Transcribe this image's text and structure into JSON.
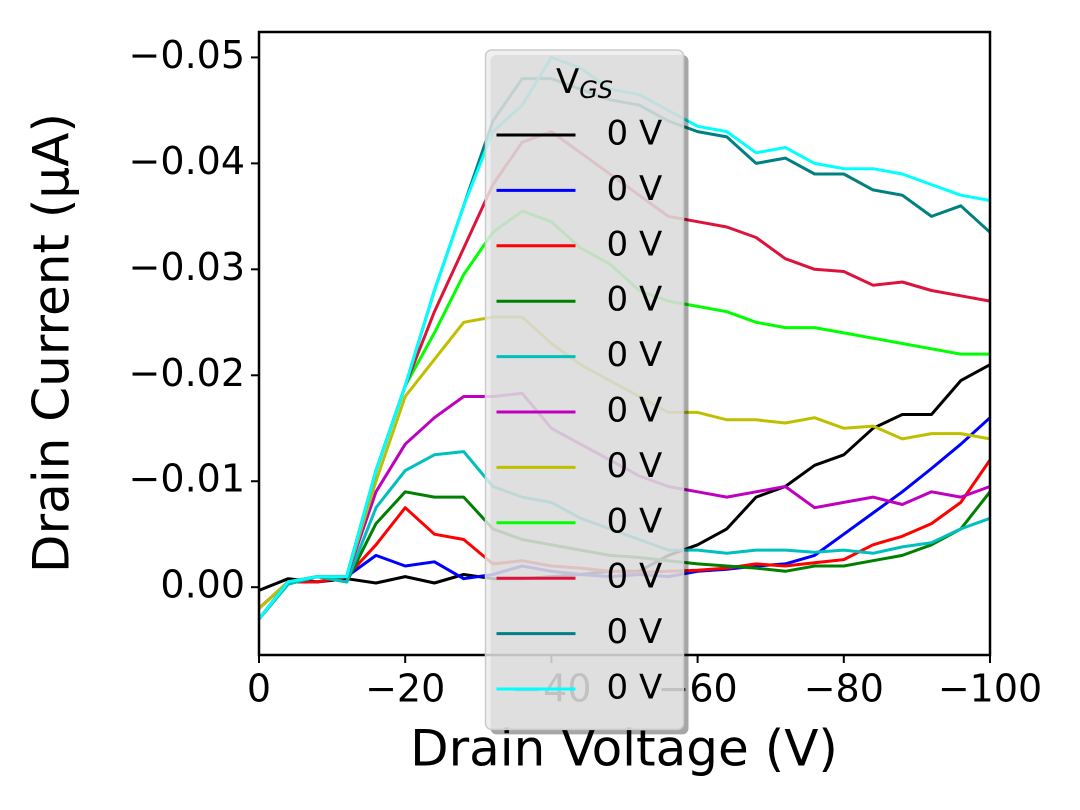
{
  "chart_data": {
    "type": "line",
    "x_label": "Drain Voltage (V)",
    "y_label": "Drain Current (μA)",
    "legend_title": "V",
    "legend_title_sub": "GS",
    "legend_loc": "upper center",
    "xlim": [
      0,
      -100
    ],
    "ylim": [
      0.0064,
      -0.0524
    ],
    "xticks": [
      0,
      {
        "value": -20,
        "label": "−20"
      },
      {
        "value": -40,
        "label": "−40"
      },
      {
        "value": -60,
        "label": "−60"
      },
      {
        "value": -80,
        "label": "−80"
      },
      {
        "value": -100,
        "label": "−100"
      }
    ],
    "yticks": [
      {
        "value": 0,
        "label": "0.00"
      },
      {
        "value": -0.01,
        "label": "−0.01"
      },
      {
        "value": -0.02,
        "label": "−0.02"
      },
      {
        "value": -0.03,
        "label": "−0.03"
      },
      {
        "value": -0.04,
        "label": "−0.04"
      },
      {
        "value": -0.05,
        "label": "−0.05"
      }
    ],
    "x": [
      0,
      -4,
      -8,
      -12,
      -16,
      -20,
      -24,
      -28,
      -32,
      -36,
      -40,
      -44,
      -48,
      -52,
      -56,
      -60,
      -64,
      -68,
      -72,
      -76,
      -80,
      -84,
      -88,
      -92,
      -96,
      -100
    ],
    "series": [
      {
        "name": "0 V",
        "color": "#000000",
        "values": [
          0.0003,
          -0.0008,
          -0.0005,
          -0.0008,
          -0.0004,
          -0.001,
          -0.0004,
          -0.0012,
          -0.0008,
          -0.0008,
          -0.001,
          -0.0012,
          -0.0015,
          -0.0015,
          -0.003,
          -0.004,
          -0.0055,
          -0.0085,
          -0.0095,
          -0.0115,
          -0.0125,
          -0.015,
          -0.0163,
          -0.0163,
          -0.0195,
          -0.021
        ]
      },
      {
        "name": "0 V",
        "color": "#0000ff",
        "values": [
          0.002,
          -0.0005,
          -0.0005,
          -0.001,
          -0.003,
          -0.002,
          -0.0024,
          -0.0008,
          -0.0012,
          -0.002,
          -0.0015,
          -0.0012,
          -0.001,
          -0.0012,
          -0.001,
          -0.0015,
          -0.0017,
          -0.002,
          -0.0022,
          -0.003,
          -0.005,
          -0.007,
          -0.009,
          -0.0112,
          -0.0135,
          -0.016
        ]
      },
      {
        "name": "0 V",
        "color": "#ff0000",
        "values": [
          0.003,
          -0.0005,
          -0.0005,
          -0.001,
          -0.004,
          -0.0075,
          -0.005,
          -0.0045,
          -0.0022,
          -0.0025,
          -0.002,
          -0.0018,
          -0.0015,
          -0.0014,
          -0.0015,
          -0.0016,
          -0.0018,
          -0.0022,
          -0.002,
          -0.0023,
          -0.0026,
          -0.004,
          -0.0048,
          -0.006,
          -0.008,
          -0.012
        ]
      },
      {
        "name": "0 V",
        "color": "#008000",
        "values": [
          0.003,
          -0.0003,
          -0.001,
          -0.0005,
          -0.006,
          -0.009,
          -0.0085,
          -0.0085,
          -0.0055,
          -0.0045,
          -0.004,
          -0.0035,
          -0.003,
          -0.0028,
          -0.0025,
          -0.0022,
          -0.002,
          -0.0018,
          -0.0015,
          -0.002,
          -0.002,
          -0.0025,
          -0.003,
          -0.004,
          -0.0055,
          -0.009
        ]
      },
      {
        "name": "0 V",
        "color": "#00bfbf",
        "values": [
          0.003,
          -0.0003,
          -0.001,
          -0.0005,
          -0.0075,
          -0.011,
          -0.0125,
          -0.0128,
          -0.0095,
          -0.0085,
          -0.008,
          -0.0065,
          -0.0055,
          -0.0045,
          -0.0035,
          -0.0035,
          -0.0032,
          -0.0035,
          -0.0035,
          -0.0033,
          -0.0035,
          -0.0032,
          -0.0038,
          -0.0042,
          -0.0055,
          -0.0065
        ]
      },
      {
        "name": "0 V",
        "color": "#bf00bf",
        "values": [
          0.003,
          -0.0005,
          -0.001,
          -0.001,
          -0.009,
          -0.0135,
          -0.016,
          -0.018,
          -0.018,
          -0.0183,
          -0.015,
          -0.0135,
          -0.012,
          -0.0105,
          -0.0095,
          -0.009,
          -0.0085,
          -0.009,
          -0.0095,
          -0.0075,
          -0.008,
          -0.0085,
          -0.0078,
          -0.009,
          -0.0085,
          -0.0095
        ]
      },
      {
        "name": "0 V",
        "color": "#bfbf00",
        "values": [
          0.002,
          -0.0005,
          -0.001,
          -0.001,
          -0.01,
          -0.018,
          -0.0215,
          -0.025,
          -0.0255,
          -0.0255,
          -0.023,
          -0.021,
          -0.0195,
          -0.018,
          -0.0165,
          -0.0165,
          -0.0158,
          -0.0158,
          -0.0155,
          -0.016,
          -0.015,
          -0.0152,
          -0.014,
          -0.0145,
          -0.0145,
          -0.014
        ]
      },
      {
        "name": "0 V",
        "color": "#00ff00",
        "values": [
          0.003,
          -0.0005,
          -0.001,
          -0.001,
          -0.011,
          -0.019,
          -0.024,
          -0.0295,
          -0.0335,
          -0.0355,
          -0.0345,
          -0.032,
          -0.0305,
          -0.028,
          -0.027,
          -0.0265,
          -0.026,
          -0.025,
          -0.0245,
          -0.0245,
          -0.024,
          -0.0235,
          -0.023,
          -0.0225,
          -0.022,
          -0.022
        ]
      },
      {
        "name": "0 V",
        "color": "#dc143c",
        "values": [
          0.003,
          -0.0005,
          -0.001,
          -0.001,
          -0.011,
          -0.019,
          -0.026,
          -0.032,
          -0.038,
          -0.042,
          -0.043,
          -0.041,
          -0.039,
          -0.037,
          -0.035,
          -0.0345,
          -0.034,
          -0.033,
          -0.031,
          -0.03,
          -0.0298,
          -0.0285,
          -0.0288,
          -0.028,
          -0.0275,
          -0.027
        ]
      },
      {
        "name": "0 V",
        "color": "#008080",
        "values": [
          0.003,
          -0.0005,
          -0.001,
          -0.001,
          -0.011,
          -0.019,
          -0.028,
          -0.036,
          -0.044,
          -0.048,
          -0.048,
          -0.047,
          -0.046,
          -0.0455,
          -0.044,
          -0.043,
          -0.0425,
          -0.04,
          -0.0405,
          -0.039,
          -0.039,
          -0.0375,
          -0.037,
          -0.035,
          -0.036,
          -0.0335
        ]
      },
      {
        "name": "0 V",
        "color": "#00ffff",
        "values": [
          0.003,
          -0.0005,
          -0.001,
          -0.001,
          -0.011,
          -0.019,
          -0.028,
          -0.036,
          -0.043,
          -0.0455,
          -0.05,
          -0.049,
          -0.047,
          -0.0465,
          -0.045,
          -0.0435,
          -0.043,
          -0.041,
          -0.0415,
          -0.04,
          -0.0395,
          -0.0395,
          -0.039,
          -0.038,
          -0.037,
          -0.0365
        ]
      }
    ]
  }
}
